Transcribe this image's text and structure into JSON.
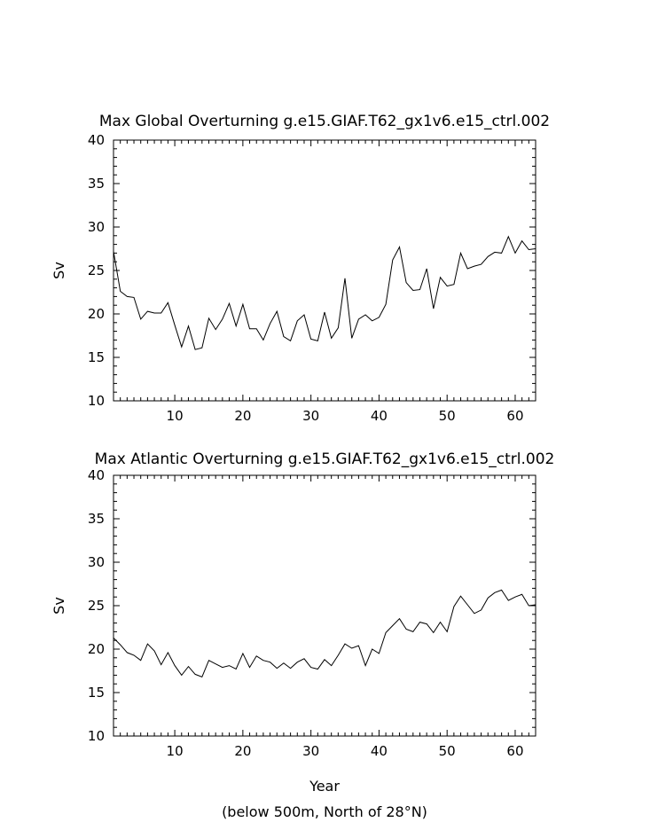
{
  "chart_data": [
    {
      "type": "line",
      "title": "Max Global Overturning g.e15.GIAF.T62_gx1v6.e15_ctrl.002",
      "xlabel": "",
      "ylabel": "Sv",
      "xlim": [
        1,
        63
      ],
      "ylim": [
        10,
        40
      ],
      "x_ticks": [
        10,
        20,
        30,
        40,
        50,
        60
      ],
      "x_tick_labels": [
        "10",
        "20",
        "30",
        "40",
        "50",
        "60"
      ],
      "y_ticks": [
        10,
        15,
        20,
        25,
        30,
        35,
        40
      ],
      "y_tick_labels": [
        "10",
        "15",
        "20",
        "25",
        "30",
        "35",
        "40"
      ],
      "grid": false,
      "x": [
        1,
        2,
        3,
        4,
        5,
        6,
        7,
        8,
        9,
        10,
        11,
        12,
        13,
        14,
        15,
        16,
        17,
        18,
        19,
        20,
        21,
        22,
        23,
        24,
        25,
        26,
        27,
        28,
        29,
        30,
        31,
        32,
        33,
        34,
        35,
        36,
        37,
        38,
        39,
        40,
        41,
        42,
        43,
        44,
        45,
        46,
        47,
        48,
        49,
        50,
        51,
        52,
        53,
        54,
        55,
        56,
        57,
        58,
        59,
        60,
        61,
        62,
        63
      ],
      "series": [
        {
          "values": [
            27.2,
            22.6,
            22.0,
            21.9,
            19.4,
            20.3,
            20.1,
            20.1,
            21.3,
            18.7,
            16.2,
            18.6,
            15.9,
            16.1,
            19.5,
            18.2,
            19.4,
            21.2,
            18.6,
            21.1,
            18.3,
            18.3,
            17.0,
            18.9,
            20.3,
            17.4,
            16.9,
            19.2,
            19.9,
            17.1,
            16.9,
            20.2,
            17.2,
            18.4,
            24.1,
            17.2,
            19.4,
            19.9,
            19.2,
            19.6,
            21.1,
            26.2,
            27.7,
            23.6,
            22.7,
            22.8,
            25.2,
            20.6,
            24.2,
            23.2,
            23.4,
            27.0,
            25.2,
            25.5,
            25.7,
            26.6,
            27.1,
            27.0,
            28.9,
            27.0,
            28.4,
            27.4,
            27.5
          ]
        }
      ]
    },
    {
      "type": "line",
      "title": "Max Atlantic Overturning g.e15.GIAF.T62_gx1v6.e15_ctrl.002",
      "xlabel": "Year",
      "ylabel": "Sv",
      "xlim": [
        1,
        63
      ],
      "ylim": [
        10,
        40
      ],
      "x_ticks": [
        10,
        20,
        30,
        40,
        50,
        60
      ],
      "x_tick_labels": [
        "10",
        "20",
        "30",
        "40",
        "50",
        "60"
      ],
      "y_ticks": [
        10,
        15,
        20,
        25,
        30,
        35,
        40
      ],
      "y_tick_labels": [
        "10",
        "15",
        "20",
        "25",
        "30",
        "35",
        "40"
      ],
      "grid": false,
      "x": [
        1,
        2,
        3,
        4,
        5,
        6,
        7,
        8,
        9,
        10,
        11,
        12,
        13,
        14,
        15,
        16,
        17,
        18,
        19,
        20,
        21,
        22,
        23,
        24,
        25,
        26,
        27,
        28,
        29,
        30,
        31,
        32,
        33,
        34,
        35,
        36,
        37,
        38,
        39,
        40,
        41,
        42,
        43,
        44,
        45,
        46,
        47,
        48,
        49,
        50,
        51,
        52,
        53,
        54,
        55,
        56,
        57,
        58,
        59,
        60,
        61,
        62,
        63
      ],
      "series": [
        {
          "values": [
            21.3,
            20.5,
            19.6,
            19.3,
            18.7,
            20.6,
            19.8,
            18.2,
            19.6,
            18.1,
            17.0,
            18.0,
            17.1,
            16.8,
            18.7,
            18.3,
            17.9,
            18.1,
            17.7,
            19.5,
            17.9,
            19.2,
            18.7,
            18.5,
            17.8,
            18.4,
            17.8,
            18.5,
            18.9,
            17.9,
            17.7,
            18.8,
            18.1,
            19.3,
            20.6,
            20.1,
            20.4,
            18.1,
            20.0,
            19.5,
            21.9,
            22.7,
            23.5,
            22.3,
            22.0,
            23.1,
            22.9,
            21.9,
            23.1,
            22.0,
            24.9,
            26.1,
            25.1,
            24.1,
            24.5,
            25.9,
            26.5,
            26.8,
            25.6,
            26.0,
            26.3,
            25.0,
            25.1
          ]
        }
      ]
    }
  ],
  "footer": {
    "note": "(below 500m, North of 28°N)"
  },
  "colors": {
    "line": "#000000",
    "axis": "#000000",
    "background": "#ffffff"
  }
}
